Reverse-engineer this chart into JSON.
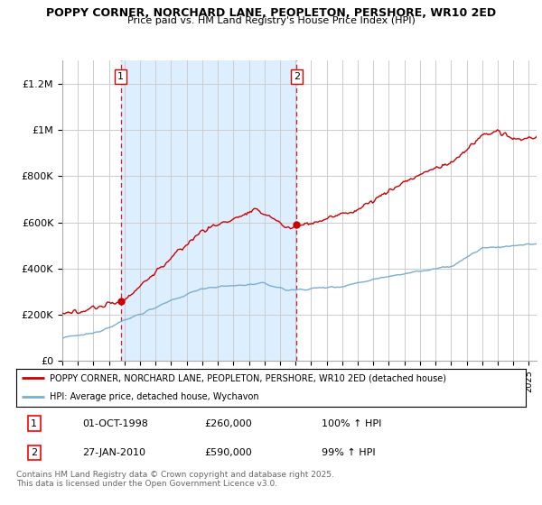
{
  "title": "POPPY CORNER, NORCHARD LANE, PEOPLETON, PERSHORE, WR10 2ED",
  "subtitle": "Price paid vs. HM Land Registry's House Price Index (HPI)",
  "hpi_color": "#7aadd4",
  "price_color": "#cc0000",
  "dashed_line_color": "#cc0000",
  "shade_color": "#ddeeff",
  "background_color": "#ffffff",
  "ylim": [
    0,
    1300000
  ],
  "yticks": [
    0,
    200000,
    400000,
    600000,
    800000,
    1000000,
    1200000
  ],
  "ytick_labels": [
    "£0",
    "£200K",
    "£400K",
    "£600K",
    "£800K",
    "£1M",
    "£1.2M"
  ],
  "sale1_year": 1998.75,
  "sale1_price": 260000,
  "sale2_year": 2010.07,
  "sale2_price": 590000,
  "legend_entry1": "POPPY CORNER, NORCHARD LANE, PEOPLETON, PERSHORE, WR10 2ED (detached house)",
  "legend_entry2": "HPI: Average price, detached house, Wychavon",
  "table_row1": [
    "1",
    "01-OCT-1998",
    "£260,000",
    "100% ↑ HPI"
  ],
  "table_row2": [
    "2",
    "27-JAN-2010",
    "£590,000",
    "99% ↑ HPI"
  ],
  "footer": "Contains HM Land Registry data © Crown copyright and database right 2025.\nThis data is licensed under the Open Government Licence v3.0.",
  "xmin": 1995,
  "xmax": 2025.5
}
